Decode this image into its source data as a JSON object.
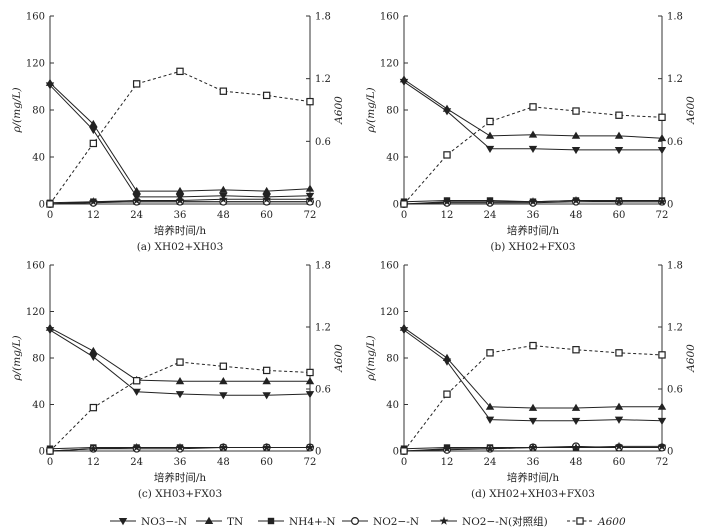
{
  "figure": {
    "xlabel": "培养时间/h",
    "ylabel_left": "ρ/(mg/L)",
    "ylabel_right": "A600"
  },
  "legend": [
    {
      "label": "NO3−-N",
      "marker": "triangle-down",
      "line": "solid"
    },
    {
      "label": "TN",
      "marker": "triangle-up",
      "line": "solid"
    },
    {
      "label": "NH4+-N",
      "marker": "square",
      "line": "solid"
    },
    {
      "label": "NO2−-N",
      "marker": "circle-open",
      "line": "solid"
    },
    {
      "label": "NO2−-N(对照组)",
      "marker": "star",
      "line": "solid"
    },
    {
      "label": "A600",
      "marker": "square-open",
      "line": "dashed"
    }
  ],
  "colors": {
    "series": "#222222",
    "axis": "#333333"
  },
  "chart_data": [
    {
      "type": "line",
      "title": "(a) XH02+XH03",
      "x": [
        0,
        12,
        24,
        36,
        48,
        60,
        72
      ],
      "xlim": [
        0,
        72
      ],
      "ylim": [
        0,
        160
      ],
      "y2lim": [
        0,
        1.8
      ],
      "yticks": [
        0,
        40,
        80,
        120,
        160
      ],
      "y2ticks": [
        0,
        0.6,
        1.2,
        1.8
      ],
      "series": [
        {
          "name": "NO3−-N",
          "axis": "left",
          "values": [
            101,
            63,
            6,
            6,
            7,
            6,
            7
          ]
        },
        {
          "name": "TN",
          "axis": "left",
          "values": [
            103,
            68,
            11,
            11,
            12,
            11,
            13
          ]
        },
        {
          "name": "NH4+-N",
          "axis": "left",
          "values": [
            1,
            2,
            2,
            2,
            2,
            2,
            2
          ]
        },
        {
          "name": "NO2−-N",
          "axis": "left",
          "values": [
            0,
            1,
            2,
            2,
            2,
            2,
            2
          ]
        },
        {
          "name": "NO2−-N(对照组)",
          "axis": "left",
          "values": [
            0,
            2,
            3,
            3,
            4,
            4,
            4
          ]
        },
        {
          "name": "A600",
          "axis": "right",
          "values": [
            0,
            0.58,
            1.15,
            1.27,
            1.08,
            1.04,
            0.98
          ]
        }
      ]
    },
    {
      "type": "line",
      "title": "(b) XH02+FX03",
      "x": [
        0,
        12,
        24,
        36,
        48,
        60,
        72
      ],
      "xlim": [
        0,
        72
      ],
      "ylim": [
        0,
        160
      ],
      "y2lim": [
        0,
        1.8
      ],
      "yticks": [
        0,
        40,
        80,
        120,
        160
      ],
      "y2ticks": [
        0,
        0.6,
        1.2,
        1.8
      ],
      "series": [
        {
          "name": "NO3−-N",
          "axis": "left",
          "values": [
            104,
            79,
            47,
            47,
            46,
            46,
            46
          ]
        },
        {
          "name": "TN",
          "axis": "left",
          "values": [
            106,
            81,
            58,
            59,
            58,
            58,
            56
          ]
        },
        {
          "name": "NH4+-N",
          "axis": "left",
          "values": [
            2,
            3,
            3,
            2,
            3,
            3,
            3
          ]
        },
        {
          "name": "NO2−-N",
          "axis": "left",
          "values": [
            0,
            1,
            1,
            1,
            2,
            2,
            2
          ]
        },
        {
          "name": "NO2−-N(对照组)",
          "axis": "left",
          "values": [
            0,
            2,
            2,
            2,
            3,
            2,
            2
          ]
        },
        {
          "name": "A600",
          "axis": "right",
          "values": [
            0,
            0.47,
            0.79,
            0.93,
            0.89,
            0.85,
            0.83
          ]
        }
      ]
    },
    {
      "type": "line",
      "title": "(c) XH03+FX03",
      "x": [
        0,
        12,
        24,
        36,
        48,
        60,
        72
      ],
      "xlim": [
        0,
        72
      ],
      "ylim": [
        0,
        160
      ],
      "y2lim": [
        0,
        1.8
      ],
      "yticks": [
        0,
        40,
        80,
        120,
        160
      ],
      "y2ticks": [
        0,
        0.6,
        1.2,
        1.8
      ],
      "series": [
        {
          "name": "NO3−-N",
          "axis": "left",
          "values": [
            104,
            81,
            51,
            49,
            48,
            48,
            49
          ]
        },
        {
          "name": "TN",
          "axis": "left",
          "values": [
            106,
            86,
            61,
            60,
            60,
            60,
            60
          ]
        },
        {
          "name": "NH4+-N",
          "axis": "left",
          "values": [
            2,
            3,
            3,
            3,
            3,
            3,
            3
          ]
        },
        {
          "name": "NO2−-N",
          "axis": "left",
          "values": [
            0,
            2,
            2,
            2,
            3,
            3,
            3
          ]
        },
        {
          "name": "NO2−-N(对照组)",
          "axis": "left",
          "values": [
            0,
            2,
            3,
            3,
            3,
            3,
            3
          ]
        },
        {
          "name": "A600",
          "axis": "right",
          "values": [
            0,
            0.42,
            0.68,
            0.86,
            0.82,
            0.78,
            0.76
          ]
        }
      ]
    },
    {
      "type": "line",
      "title": "(d) XH02+XH03+FX03",
      "x": [
        0,
        12,
        24,
        36,
        48,
        60,
        72
      ],
      "xlim": [
        0,
        72
      ],
      "ylim": [
        0,
        160
      ],
      "y2lim": [
        0,
        1.8
      ],
      "yticks": [
        0,
        40,
        80,
        120,
        160
      ],
      "y2ticks": [
        0,
        0.6,
        1.2,
        1.8
      ],
      "series": [
        {
          "name": "NO3−-N",
          "axis": "left",
          "values": [
            104,
            77,
            27,
            26,
            26,
            27,
            26
          ]
        },
        {
          "name": "TN",
          "axis": "left",
          "values": [
            106,
            80,
            38,
            37,
            37,
            38,
            38
          ]
        },
        {
          "name": "NH4+-N",
          "axis": "left",
          "values": [
            2,
            3,
            3,
            3,
            3,
            3,
            3
          ]
        },
        {
          "name": "NO2−-N",
          "axis": "left",
          "values": [
            0,
            1,
            2,
            3,
            4,
            3,
            3
          ]
        },
        {
          "name": "NO2−-N(对照组)",
          "axis": "left",
          "values": [
            0,
            2,
            2,
            3,
            3,
            4,
            4
          ]
        },
        {
          "name": "A600",
          "axis": "right",
          "values": [
            0,
            0.55,
            0.95,
            1.02,
            0.98,
            0.95,
            0.93
          ]
        }
      ]
    }
  ]
}
